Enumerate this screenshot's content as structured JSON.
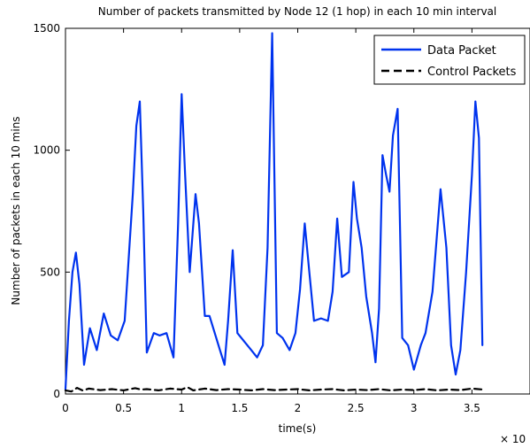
{
  "chart_data": {
    "type": "line",
    "title": "Number of packets transmitted by Node 12 (1 hop) in each 10 min interval",
    "xlabel": "time(s)",
    "ylabel": "Number of packets in each 10 mins",
    "x_exponent_label": "× 10",
    "xlim": [
      0,
      4
    ],
    "ylim": [
      0,
      1500
    ],
    "x_ticks": [
      0,
      0.5,
      1,
      1.5,
      2,
      2.5,
      3,
      3.5
    ],
    "x_tick_labels": [
      "0",
      "0.5",
      "1",
      "1.5",
      "2",
      "2.5",
      "3",
      "3.5"
    ],
    "y_ticks": [
      0,
      500,
      1000,
      1500
    ],
    "y_tick_labels": [
      "0",
      "500",
      "1000",
      "1500"
    ],
    "grid": false,
    "legend_position": "top-right",
    "series": [
      {
        "name": "Data Packet",
        "color": "#0033ee",
        "style": "solid",
        "x": [
          0.0,
          0.03,
          0.06,
          0.09,
          0.12,
          0.16,
          0.21,
          0.27,
          0.33,
          0.39,
          0.45,
          0.51,
          0.55,
          0.58,
          0.61,
          0.64,
          0.67,
          0.7,
          0.76,
          0.81,
          0.87,
          0.93,
          0.97,
          1.0,
          1.03,
          1.07,
          1.12,
          1.15,
          1.2,
          1.24,
          1.33,
          1.37,
          1.4,
          1.44,
          1.48,
          1.6,
          1.65,
          1.7,
          1.74,
          1.78,
          1.82,
          1.87,
          1.93,
          1.98,
          2.02,
          2.06,
          2.1,
          2.14,
          2.2,
          2.26,
          2.3,
          2.34,
          2.38,
          2.44,
          2.48,
          2.51,
          2.55,
          2.59,
          2.64,
          2.67,
          2.7,
          2.73,
          2.76,
          2.79,
          2.82,
          2.86,
          2.9,
          2.95,
          3.0,
          3.06,
          3.1,
          3.16,
          3.23,
          3.28,
          3.32,
          3.36,
          3.4,
          3.45,
          3.5,
          3.53,
          3.56,
          3.59
        ],
        "y": [
          20,
          300,
          500,
          580,
          450,
          120,
          270,
          180,
          330,
          240,
          220,
          300,
          600,
          820,
          1100,
          1200,
          750,
          170,
          250,
          240,
          250,
          150,
          700,
          1230,
          900,
          500,
          820,
          700,
          320,
          320,
          180,
          120,
          300,
          590,
          250,
          180,
          150,
          200,
          600,
          1480,
          250,
          230,
          180,
          250,
          430,
          700,
          500,
          300,
          310,
          300,
          420,
          720,
          480,
          500,
          870,
          720,
          600,
          400,
          250,
          130,
          350,
          980,
          900,
          830,
          1060,
          1170,
          230,
          200,
          100,
          200,
          250,
          420,
          840,
          600,
          200,
          80,
          180,
          500,
          900,
          1200,
          1050,
          200
        ]
      },
      {
        "name": "Control Packets",
        "color": "#000000",
        "style": "dashed",
        "x": [
          0.0,
          0.05,
          0.1,
          0.15,
          0.2,
          0.3,
          0.4,
          0.5,
          0.6,
          0.65,
          0.7,
          0.8,
          0.9,
          1.0,
          1.05,
          1.1,
          1.2,
          1.3,
          1.4,
          1.5,
          1.6,
          1.7,
          1.8,
          1.9,
          2.0,
          2.1,
          2.2,
          2.3,
          2.4,
          2.5,
          2.6,
          2.7,
          2.8,
          2.9,
          3.0,
          3.1,
          3.2,
          3.3,
          3.4,
          3.5,
          3.6
        ],
        "y": [
          15,
          10,
          25,
          14,
          22,
          16,
          20,
          15,
          24,
          18,
          20,
          15,
          22,
          18,
          28,
          15,
          22,
          16,
          20,
          18,
          15,
          20,
          16,
          18,
          20,
          15,
          18,
          20,
          15,
          18,
          16,
          20,
          15,
          18,
          16,
          20,
          15,
          18,
          16,
          22,
          18
        ]
      }
    ]
  }
}
